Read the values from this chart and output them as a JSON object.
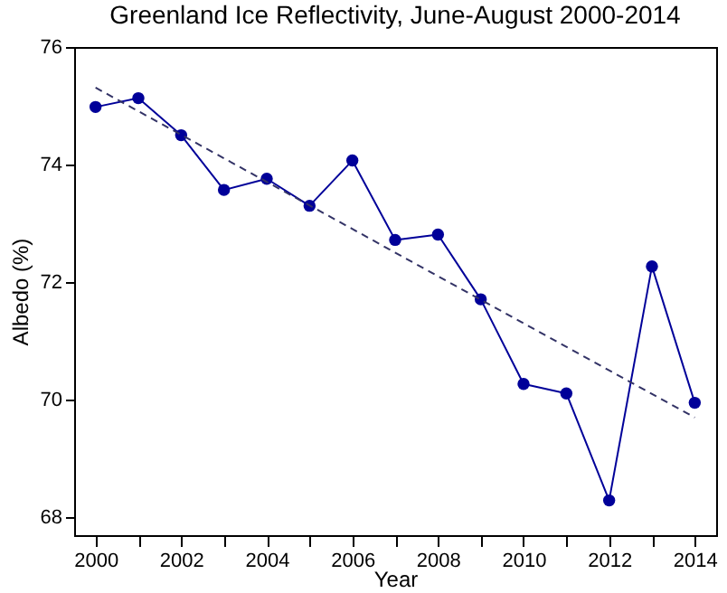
{
  "chart_data": {
    "type": "line",
    "title": "Greenland Ice Reflectivity, June-August 2000-2014",
    "xlabel": "Year",
    "ylabel": "Albedo (%)",
    "x": [
      2000,
      2001,
      2002,
      2003,
      2004,
      2005,
      2006,
      2007,
      2008,
      2009,
      2010,
      2011,
      2012,
      2013,
      2014
    ],
    "series": [
      {
        "color": "#000099",
        "marker": "circle",
        "line_style": "solid",
        "values": [
          74.98,
          75.13,
          74.5,
          73.57,
          73.76,
          73.3,
          74.07,
          72.72,
          72.81,
          71.71,
          70.27,
          70.11,
          68.29,
          72.27,
          69.95
        ]
      },
      {
        "type": "line",
        "color": "#333366",
        "marker": "none",
        "line_style": "dashed",
        "x": [
          2000,
          2014
        ],
        "values": [
          75.31,
          69.7
        ]
      }
    ],
    "xlim": [
      1999.5,
      2014.5
    ],
    "ylim": [
      67.7,
      76
    ],
    "xticks": [
      2000,
      {
        "value": 2001,
        "label": null
      },
      2002,
      {
        "value": 2003,
        "label": null
      },
      2004,
      {
        "value": 2005,
        "label": null
      },
      2006,
      {
        "value": 2007,
        "label": null
      },
      2008,
      {
        "value": 2009,
        "label": null
      },
      2010,
      {
        "value": 2011,
        "label": null
      },
      2012,
      {
        "value": 2013,
        "label": null
      },
      2014
    ],
    "yticks": [
      68,
      70,
      72,
      74,
      76
    ]
  }
}
